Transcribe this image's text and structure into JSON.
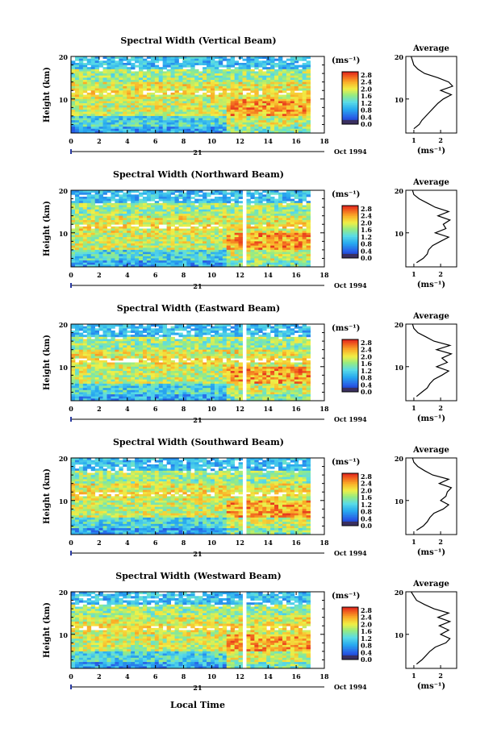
{
  "figure": {
    "bottom_xlabel": "Local Time"
  },
  "chart_data": [
    {
      "type": "heatmap",
      "title": "Spectral Width (Vertical Beam)",
      "ylabel": "Height (km)",
      "xlim": [
        0,
        18
      ],
      "ylim": [
        2,
        20
      ],
      "xticks": [
        0,
        2,
        4,
        6,
        8,
        10,
        12,
        14,
        16,
        18
      ],
      "xtick_labels": [
        "0",
        "2",
        "4",
        "6",
        "8",
        "10",
        "12",
        "14",
        "16",
        "18"
      ],
      "yticks": [
        10,
        20
      ],
      "ytick_labels": [
        "10",
        "20"
      ],
      "date_day": "21",
      "date_month": "Oct 1994",
      "colorbar": {
        "unit": "(ms⁻¹)",
        "levels": [
          "0.0",
          "0.4",
          "0.8",
          "1.2",
          "1.6",
          "2.0",
          "2.4",
          "2.8"
        ],
        "range": [
          0,
          3.0
        ]
      },
      "data_end_hour": 17,
      "gap": null,
      "profile": {
        "title": "Average",
        "xlabel": "(ms⁻¹)",
        "xlim": [
          0.7,
          2.6
        ],
        "xticks": [
          1,
          2
        ],
        "xtick_labels": [
          "1",
          "2"
        ],
        "ylim": [
          2,
          20
        ],
        "yticks": [
          10,
          20
        ],
        "ytick_labels": [
          "10",
          "20"
        ],
        "height": [
          3,
          4,
          5,
          6,
          7,
          8,
          9,
          10,
          11,
          12,
          13,
          14,
          15,
          16,
          17,
          18,
          19,
          20
        ],
        "width": [
          1.0,
          1.2,
          1.3,
          1.45,
          1.6,
          1.75,
          1.9,
          2.1,
          2.4,
          2.0,
          2.45,
          2.3,
          1.9,
          1.4,
          1.15,
          1.0,
          0.95,
          0.9
        ]
      }
    },
    {
      "type": "heatmap",
      "title": "Spectral Width (Northward Beam)",
      "ylabel": "Height (km)",
      "xlim": [
        0,
        18
      ],
      "ylim": [
        2,
        20
      ],
      "xticks": [
        0,
        2,
        4,
        6,
        8,
        10,
        12,
        14,
        16,
        18
      ],
      "xtick_labels": [
        "0",
        "2",
        "4",
        "6",
        "8",
        "10",
        "12",
        "14",
        "16",
        "18"
      ],
      "yticks": [
        10,
        20
      ],
      "ytick_labels": [
        "10",
        "20"
      ],
      "date_day": "21",
      "date_month": "Oct 1994",
      "colorbar": {
        "unit": "(ms⁻¹)",
        "levels": [
          "0.0",
          "0.4",
          "0.8",
          "1.2",
          "1.6",
          "2.0",
          "2.4",
          "2.8"
        ],
        "range": [
          0,
          3.0
        ]
      },
      "data_end_hour": 17,
      "gap": [
        12.3,
        12.55
      ],
      "profile": {
        "title": "Average",
        "xlabel": "(ms⁻¹)",
        "xlim": [
          0.7,
          2.6
        ],
        "xticks": [
          1,
          2
        ],
        "xtick_labels": [
          "1",
          "2"
        ],
        "ylim": [
          2,
          20
        ],
        "yticks": [
          10,
          20
        ],
        "ytick_labels": [
          "10",
          "20"
        ],
        "height": [
          3,
          4,
          5,
          6,
          7,
          8,
          9,
          10,
          11,
          12,
          13,
          14,
          15,
          16,
          17,
          18,
          19,
          20
        ],
        "width": [
          1.1,
          1.35,
          1.5,
          1.55,
          1.7,
          2.0,
          2.3,
          1.8,
          2.2,
          2.1,
          2.35,
          1.9,
          2.3,
          1.8,
          1.5,
          1.2,
          1.0,
          0.95
        ]
      }
    },
    {
      "type": "heatmap",
      "title": "Spectral Width (Eastward Beam)",
      "ylabel": "Height (km)",
      "xlim": [
        0,
        18
      ],
      "ylim": [
        2,
        20
      ],
      "xticks": [
        0,
        2,
        4,
        6,
        8,
        10,
        12,
        14,
        16,
        18
      ],
      "xtick_labels": [
        "0",
        "2",
        "4",
        "6",
        "8",
        "10",
        "12",
        "14",
        "16",
        "18"
      ],
      "yticks": [
        10,
        20
      ],
      "ytick_labels": [
        "10",
        "20"
      ],
      "date_day": "21",
      "date_month": "Oct 1994",
      "colorbar": {
        "unit": "(ms⁻¹)",
        "levels": [
          "0.0",
          "0.4",
          "0.8",
          "1.2",
          "1.6",
          "2.0",
          "2.4",
          "2.8"
        ],
        "range": [
          0,
          3.0
        ]
      },
      "data_end_hour": 17,
      "gap": [
        12.3,
        12.55
      ],
      "profile": {
        "title": "Average",
        "xlabel": "(ms⁻¹)",
        "xlim": [
          0.7,
          2.6
        ],
        "xticks": [
          1,
          2
        ],
        "xtick_labels": [
          "1",
          "2"
        ],
        "ylim": [
          2,
          20
        ],
        "yticks": [
          10,
          20
        ],
        "ytick_labels": [
          "10",
          "20"
        ],
        "height": [
          3,
          4,
          5,
          6,
          7,
          8,
          9,
          10,
          11,
          12,
          13,
          14,
          15,
          16,
          17,
          18,
          19,
          20
        ],
        "width": [
          1.1,
          1.3,
          1.5,
          1.6,
          1.75,
          2.05,
          2.3,
          1.85,
          2.25,
          2.05,
          2.4,
          1.85,
          2.35,
          1.75,
          1.45,
          1.15,
          1.0,
          0.95
        ]
      }
    },
    {
      "type": "heatmap",
      "title": "Spectral Width (Southward Beam)",
      "ylabel": "Height (km)",
      "xlim": [
        0,
        18
      ],
      "ylim": [
        2,
        20
      ],
      "xticks": [
        0,
        2,
        4,
        6,
        8,
        10,
        12,
        14,
        16,
        18
      ],
      "xtick_labels": [
        "0",
        "2",
        "4",
        "6",
        "8",
        "10",
        "12",
        "14",
        "16",
        "18"
      ],
      "yticks": [
        10,
        20
      ],
      "ytick_labels": [
        "10",
        "20"
      ],
      "date_day": "21",
      "date_month": "Oct 1994",
      "colorbar": {
        "unit": "(ms⁻¹)",
        "levels": [
          "0.0",
          "0.4",
          "0.8",
          "1.2",
          "1.6",
          "2.0",
          "2.4",
          "2.8"
        ],
        "range": [
          0,
          3.0
        ]
      },
      "data_end_hour": 17,
      "gap": [
        12.3,
        12.55
      ],
      "profile": {
        "title": "Average",
        "xlabel": "(ms⁻¹)",
        "xlim": [
          0.7,
          2.6
        ],
        "xticks": [
          1,
          2
        ],
        "xtick_labels": [
          "1",
          "2"
        ],
        "ylim": [
          2,
          20
        ],
        "yticks": [
          10,
          20
        ],
        "ytick_labels": [
          "10",
          "20"
        ],
        "height": [
          3,
          4,
          5,
          6,
          7,
          8,
          9,
          10,
          11,
          12,
          13,
          14,
          15,
          16,
          17,
          18,
          19,
          20
        ],
        "width": [
          1.1,
          1.35,
          1.5,
          1.6,
          1.75,
          2.1,
          2.3,
          2.0,
          2.2,
          2.25,
          2.4,
          1.95,
          2.3,
          1.7,
          1.4,
          1.15,
          1.0,
          0.95
        ]
      }
    },
    {
      "type": "heatmap",
      "title": "Spectral Width (Westward Beam)",
      "ylabel": "Height (km)",
      "xlim": [
        0,
        18
      ],
      "ylim": [
        2,
        20
      ],
      "xticks": [
        0,
        2,
        4,
        6,
        8,
        10,
        12,
        14,
        16,
        18
      ],
      "xtick_labels": [
        "0",
        "2",
        "4",
        "6",
        "8",
        "10",
        "12",
        "14",
        "16",
        "18"
      ],
      "yticks": [
        10,
        20
      ],
      "ytick_labels": [
        "10",
        "20"
      ],
      "date_day": "21",
      "date_month": "Oct 1994",
      "colorbar": {
        "unit": "(ms⁻¹)",
        "levels": [
          "0.0",
          "0.4",
          "0.8",
          "1.2",
          "1.6",
          "2.0",
          "2.4",
          "2.8"
        ],
        "range": [
          0,
          3.0
        ]
      },
      "data_end_hour": 17,
      "gap": [
        12.3,
        12.55
      ],
      "profile": {
        "title": "Average",
        "xlabel": "(ms⁻¹)",
        "xlim": [
          0.7,
          2.6
        ],
        "xticks": [
          1,
          2
        ],
        "xtick_labels": [
          "1",
          "2"
        ],
        "ylim": [
          2,
          20
        ],
        "yticks": [
          10,
          20
        ],
        "ytick_labels": [
          "10",
          "20"
        ],
        "height": [
          3,
          4,
          5,
          6,
          7,
          8,
          9,
          10,
          11,
          12,
          13,
          14,
          15,
          16,
          17,
          18,
          19,
          20
        ],
        "width": [
          1.1,
          1.3,
          1.45,
          1.6,
          1.8,
          2.2,
          2.35,
          2.0,
          2.3,
          1.95,
          2.35,
          1.9,
          2.3,
          1.75,
          1.4,
          1.1,
          1.0,
          0.9
        ]
      }
    }
  ]
}
